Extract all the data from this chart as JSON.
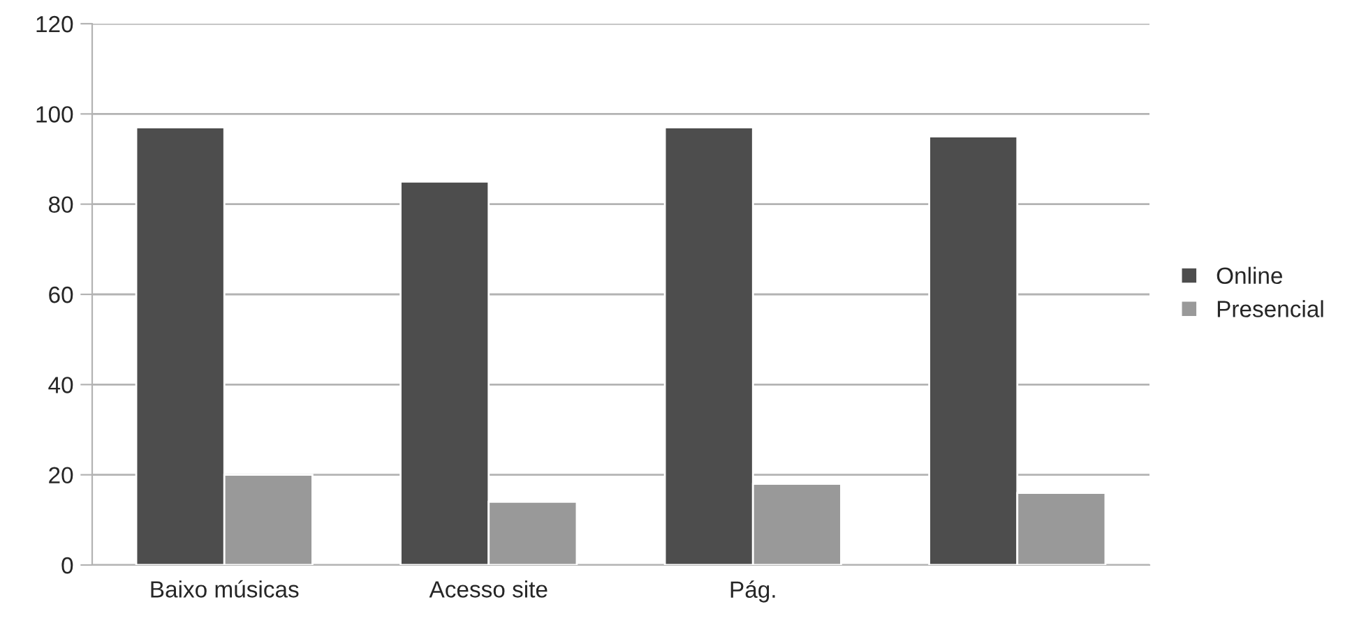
{
  "chart_data": {
    "type": "bar",
    "categories": [
      "Baixo músicas",
      "Acesso site",
      "Pág.",
      null
    ],
    "series": [
      {
        "name": "Online",
        "color": "#4d4d4d",
        "values": [
          97,
          85,
          97,
          95
        ]
      },
      {
        "name": "Presencial",
        "color": "#999999",
        "values": [
          20,
          14,
          18,
          16
        ]
      }
    ],
    "ylim": [
      0,
      120
    ],
    "yticks": [
      0,
      20,
      40,
      60,
      80,
      100,
      120
    ],
    "grid": "y",
    "legend": "right"
  }
}
